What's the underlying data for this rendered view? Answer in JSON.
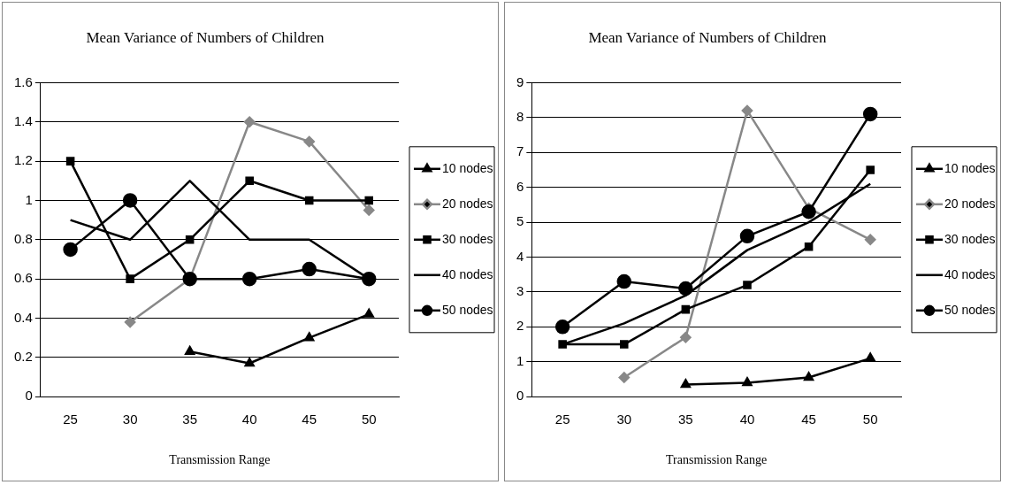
{
  "chart_data": [
    {
      "type": "line",
      "title": "Mean Variance of Numbers of Children",
      "xlabel": "Transmission Range",
      "categories": [
        "25",
        "30",
        "35",
        "40",
        "45",
        "50"
      ],
      "ylim": [
        0,
        1.6
      ],
      "yticks": [
        0,
        0.2,
        0.4,
        0.6,
        0.8,
        1,
        1.2,
        1.4,
        1.6
      ],
      "grid": "y",
      "legend": "right",
      "series": [
        {
          "name": "10 nodes",
          "color": "#000000",
          "marker": "triangle",
          "values": [
            null,
            null,
            0.23,
            0.17,
            0.3,
            0.42
          ]
        },
        {
          "name": "20 nodes",
          "color": "#888888",
          "marker": "diamond",
          "values": [
            null,
            0.38,
            0.6,
            1.4,
            1.3,
            0.95
          ]
        },
        {
          "name": "30 nodes",
          "color": "#000000",
          "marker": "square",
          "values": [
            1.2,
            0.6,
            0.8,
            1.1,
            1.0,
            1.0
          ]
        },
        {
          "name": "40 nodes",
          "color": "#000000",
          "marker": "none",
          "values": [
            0.9,
            0.8,
            1.1,
            0.8,
            0.8,
            0.6
          ]
        },
        {
          "name": "50 nodes",
          "color": "#000000",
          "marker": "circle",
          "values": [
            0.75,
            1.0,
            0.6,
            0.6,
            0.65,
            0.6
          ]
        }
      ]
    },
    {
      "type": "line",
      "title": "Mean Variance of Numbers of Children",
      "xlabel": "Transmission Range",
      "categories": [
        "25",
        "30",
        "35",
        "40",
        "45",
        "50"
      ],
      "ylim": [
        0,
        9
      ],
      "yticks": [
        0,
        1,
        2,
        3,
        4,
        5,
        6,
        7,
        8,
        9
      ],
      "grid": "y",
      "legend": "right",
      "series": [
        {
          "name": "10 nodes",
          "color": "#000000",
          "marker": "triangle",
          "values": [
            null,
            null,
            0.35,
            0.4,
            0.55,
            1.1
          ]
        },
        {
          "name": "20 nodes",
          "color": "#888888",
          "marker": "diamond",
          "values": [
            null,
            0.55,
            1.7,
            8.2,
            5.4,
            4.5
          ]
        },
        {
          "name": "30 nodes",
          "color": "#000000",
          "marker": "square",
          "values": [
            1.5,
            1.5,
            2.5,
            3.2,
            4.3,
            6.5
          ]
        },
        {
          "name": "40 nodes",
          "color": "#000000",
          "marker": "none",
          "values": [
            1.5,
            2.1,
            2.9,
            4.2,
            5.0,
            6.1
          ]
        },
        {
          "name": "50 nodes",
          "color": "#000000",
          "marker": "circle",
          "values": [
            2.0,
            3.3,
            3.1,
            4.6,
            5.3,
            8.1
          ]
        }
      ]
    }
  ]
}
